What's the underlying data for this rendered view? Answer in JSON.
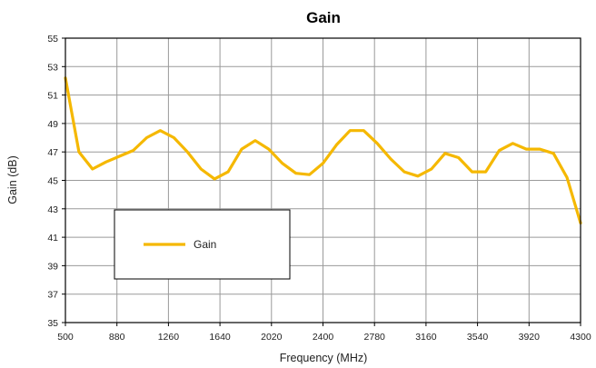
{
  "chart_data": {
    "type": "line",
    "title": "Gain",
    "xlabel": "Frequency (MHz)",
    "ylabel": "Gain (dB)",
    "xlim": [
      500,
      4300
    ],
    "ylim": [
      35,
      55
    ],
    "x_ticks": [
      "500",
      "880",
      "1260",
      "1640",
      "2020",
      "2400",
      "2780",
      "3160",
      "3540",
      "3920",
      "4300"
    ],
    "y_ticks": [
      "35",
      "37",
      "39",
      "41",
      "43",
      "45",
      "47",
      "49",
      "51",
      "53",
      "55"
    ],
    "grid": true,
    "legend_position": "lower-left inside",
    "series": [
      {
        "name": "Gain",
        "color": "#F5B800",
        "x": [
          500,
          600,
          700,
          800,
          900,
          1000,
          1100,
          1200,
          1300,
          1400,
          1500,
          1600,
          1700,
          1800,
          1900,
          2000,
          2100,
          2200,
          2300,
          2400,
          2500,
          2600,
          2700,
          2800,
          2900,
          3000,
          3100,
          3200,
          3300,
          3400,
          3500,
          3600,
          3700,
          3800,
          3900,
          4000,
          4100,
          4200,
          4300
        ],
        "values": [
          52.2,
          47.0,
          45.8,
          46.3,
          46.7,
          47.1,
          48.0,
          48.5,
          48.0,
          47.0,
          45.8,
          45.1,
          45.6,
          47.2,
          47.8,
          47.2,
          46.2,
          45.5,
          45.4,
          46.2,
          47.5,
          48.5,
          48.5,
          47.6,
          46.5,
          45.6,
          45.3,
          45.8,
          46.9,
          46.6,
          45.6,
          45.6,
          47.1,
          47.6,
          47.2,
          47.2,
          46.9,
          45.2,
          42.0
        ]
      }
    ]
  }
}
